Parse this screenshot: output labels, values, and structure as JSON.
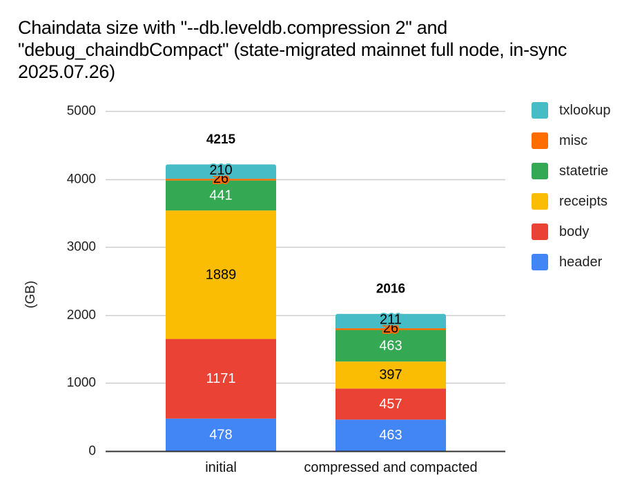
{
  "chart_data": {
    "type": "bar",
    "stacked": true,
    "title": "Chaindata size with \"--db.leveldb.compression 2\" and \"debug_chaindbCompact\" (state-migrated mainnet full node, in-sync 2025.07.26)",
    "xlabel": "",
    "ylabel": "(GB)",
    "ylim": [
      0,
      5000
    ],
    "yticks": [
      0,
      1000,
      2000,
      3000,
      4000,
      5000
    ],
    "grid": true,
    "legend_position": "right",
    "categories": [
      "initial",
      "compressed and compacted"
    ],
    "totals": [
      4215,
      2016
    ],
    "series": [
      {
        "name": "header",
        "color": "#4285F4",
        "label_color": "#ffffff",
        "values": [
          478,
          463
        ]
      },
      {
        "name": "body",
        "color": "#EA4335",
        "label_color": "#ffffff",
        "values": [
          1171,
          457
        ]
      },
      {
        "name": "receipts",
        "color": "#FBBC04",
        "label_color": "#000000",
        "values": [
          1889,
          397
        ]
      },
      {
        "name": "statetrie",
        "color": "#34A853",
        "label_color": "#ffffff",
        "values": [
          441,
          463
        ]
      },
      {
        "name": "misc",
        "color": "#FF6D01",
        "label_color": "#000000",
        "values": [
          26,
          26
        ]
      },
      {
        "name": "txlookup",
        "color": "#46BDC6",
        "label_color": "#000000",
        "values": [
          210,
          211
        ]
      }
    ],
    "legend_order": [
      "txlookup",
      "misc",
      "statetrie",
      "receipts",
      "body",
      "header"
    ]
  }
}
